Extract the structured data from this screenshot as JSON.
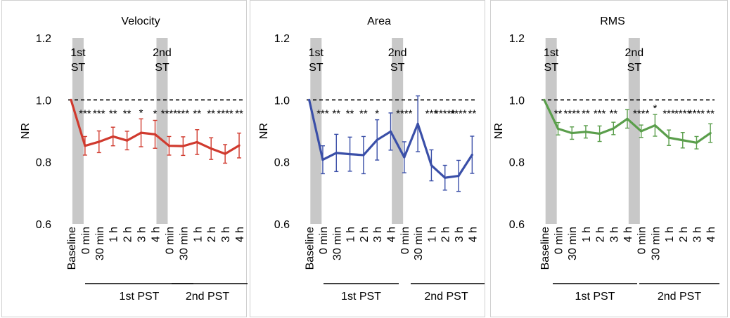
{
  "chart_data": [
    {
      "type": "line",
      "title": "Velocity",
      "ylabel": "NR",
      "ylim": [
        0.6,
        1.2
      ],
      "yticks": [
        "0.6",
        "0.8",
        "1.0",
        "1.2"
      ],
      "categories": [
        "Baseline",
        "0 min",
        "30 min",
        "1 h",
        "2 h",
        "3 h",
        "4 h",
        "0 min",
        "30 min",
        "1 h",
        "2 h",
        "3 h",
        "4 h"
      ],
      "groups": [
        "1st PST",
        "2nd PST"
      ],
      "stimulations": [
        "1st ST",
        "2nd ST"
      ],
      "reference": 1.0,
      "color": "#d03a2e",
      "values": [
        1.0,
        0.852,
        0.865,
        0.882,
        0.869,
        0.894,
        0.889,
        0.852,
        0.851,
        0.864,
        0.843,
        0.826,
        0.853
      ],
      "errors": [
        0,
        0.03,
        0.035,
        0.03,
        0.03,
        0.045,
        0.045,
        0.03,
        0.03,
        0.04,
        0.035,
        0.03,
        0.04
      ],
      "annotations": [
        "",
        "***",
        "***",
        "**",
        "**",
        "*",
        "*",
        "****",
        "***",
        "**",
        "**",
        "****",
        "**"
      ]
    },
    {
      "type": "line",
      "title": "Area",
      "ylabel": "NR",
      "ylim": [
        0.6,
        1.2
      ],
      "yticks": [
        "0.6",
        "0.8",
        "1.0",
        "1.2"
      ],
      "categories": [
        "Baseline",
        "0 min",
        "30 min",
        "1 h",
        "2 h",
        "3 h",
        "4 h",
        "0 min",
        "30 min",
        "1 h",
        "2 h",
        "3 h",
        "4 h"
      ],
      "groups": [
        "1st PST",
        "2nd PST"
      ],
      "stimulations": [
        "1st ST",
        "2nd ST"
      ],
      "reference": 1.0,
      "color": "#3a4fa8",
      "values": [
        1.0,
        0.807,
        0.829,
        0.825,
        0.822,
        0.871,
        0.898,
        0.815,
        0.923,
        0.789,
        0.749,
        0.755,
        0.823
      ],
      "errors": [
        0,
        0.045,
        0.06,
        0.055,
        0.06,
        0.065,
        0.06,
        0.05,
        0.09,
        0.05,
        0.04,
        0.05,
        0.06
      ],
      "annotations": [
        "",
        "***",
        "**",
        "**",
        "**",
        "*",
        "",
        "****",
        "",
        "***",
        "*****",
        "****",
        "**"
      ]
    },
    {
      "type": "line",
      "title": "RMS",
      "ylabel": "NR",
      "ylim": [
        0.6,
        1.2
      ],
      "yticks": [
        "0.6",
        "0.8",
        "1.0",
        "1.2"
      ],
      "categories": [
        "Baseline",
        "0 min",
        "30 min",
        "1 h",
        "2 h",
        "3 h",
        "4 h",
        "0 min",
        "30 min",
        "1 h",
        "2 h",
        "3 h",
        "4 h"
      ],
      "groups": [
        "1st PST",
        "2nd PST"
      ],
      "stimulations": [
        "1st ST",
        "2nd ST"
      ],
      "reference": 1.0,
      "color": "#5a9e4b",
      "values": [
        1.0,
        0.907,
        0.893,
        0.897,
        0.891,
        0.908,
        0.939,
        0.899,
        0.918,
        0.878,
        0.87,
        0.862,
        0.893
      ],
      "errors": [
        0,
        0.02,
        0.02,
        0.02,
        0.025,
        0.02,
        0.03,
        0.02,
        0.035,
        0.025,
        0.025,
        0.02,
        0.03
      ],
      "annotations": [
        "",
        "**",
        "****",
        "**",
        "***",
        "**",
        "",
        "****",
        "*",
        "***",
        "****",
        "****",
        "**"
      ]
    }
  ]
}
